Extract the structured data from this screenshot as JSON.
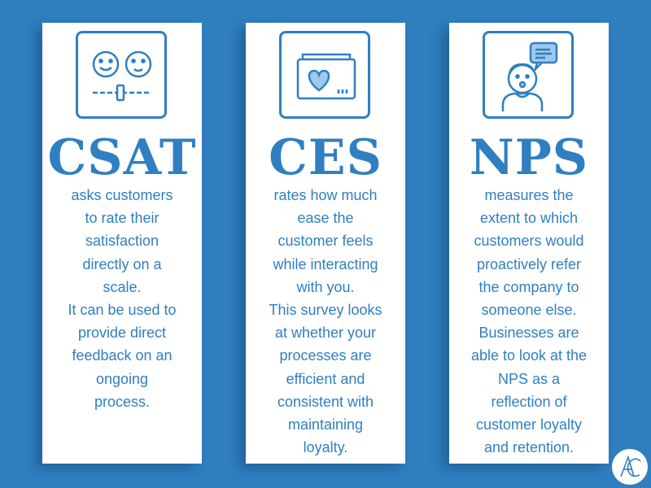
{
  "colors": {
    "background": "#2f7fc1",
    "card": "#ffffff",
    "accent": "#2f7fc1"
  },
  "cards": [
    {
      "title": "CSAT",
      "icon": "rating-slider-faces-icon",
      "lines": [
        "asks customers",
        "to rate their",
        "satisfaction",
        "directly on a",
        "scale.",
        "It can be used to",
        "provide direct",
        "feedback on an",
        "ongoing",
        "process."
      ]
    },
    {
      "title": "CES",
      "icon": "heart-window-icon",
      "lines": [
        "rates how much",
        "ease the",
        "customer feels",
        "while interacting",
        "with you.",
        "This survey looks",
        "at whether your",
        "processes are",
        "efficient and",
        "consistent with",
        "maintaining",
        "loyalty."
      ]
    },
    {
      "title": "NPS",
      "icon": "person-speech-bubble-icon",
      "lines": [
        "measures the",
        "extent to which",
        "customers would",
        "proactively refer",
        "the company to",
        "someone else.",
        "Businesses are",
        "able to look at the",
        "NPS as a",
        "reflection of",
        "customer loyalty",
        "and retention."
      ]
    }
  ],
  "logo": {
    "text": "AC",
    "icon": "ac-monogram-logo"
  }
}
